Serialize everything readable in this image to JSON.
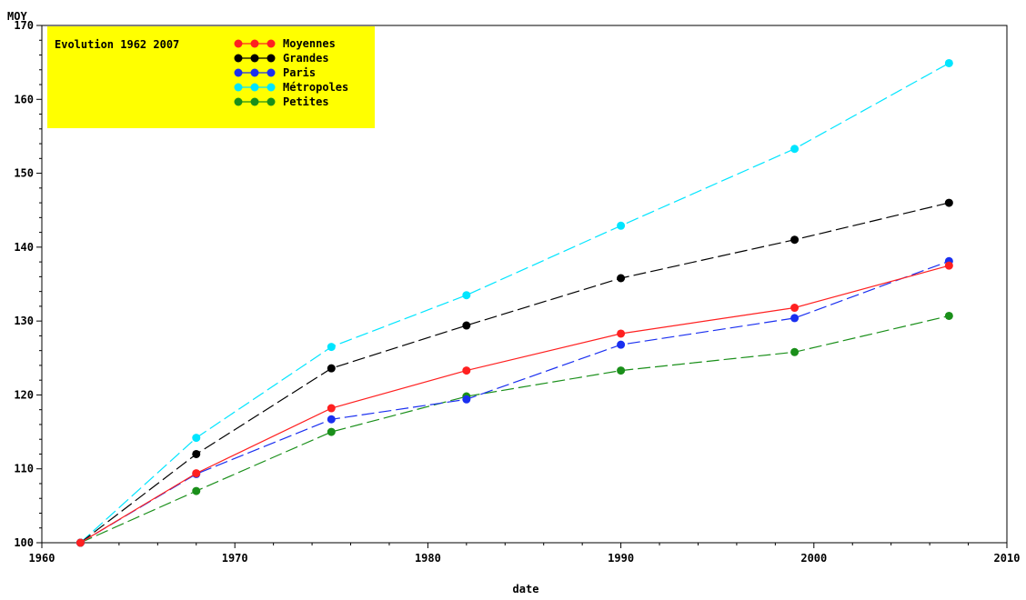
{
  "chart_data": {
    "type": "line",
    "title": "",
    "xlabel": "date",
    "ylabel": "MOY",
    "xlim": [
      1960,
      2010
    ],
    "ylim": [
      100,
      170
    ],
    "xticks": [
      1960,
      1970,
      1980,
      1990,
      2000,
      2010
    ],
    "yticks": [
      100,
      110,
      120,
      130,
      140,
      150,
      160,
      170
    ],
    "grid": false,
    "legend_placement": "top-left",
    "legend_title": "Evolution 1962 2007",
    "legend_background": "#ffff00",
    "x": [
      1962,
      1968,
      1975,
      1982,
      1990,
      1999,
      2007
    ],
    "series": [
      {
        "name": "Moyennes",
        "color": "#ff2020",
        "dash": "solid",
        "values": [
          100,
          109.4,
          118.2,
          123.3,
          128.3,
          131.8,
          137.5
        ]
      },
      {
        "name": "Grandes",
        "color": "#000000",
        "dash": "dashed",
        "values": [
          100,
          112.0,
          123.6,
          129.4,
          135.8,
          141.0,
          146.0
        ]
      },
      {
        "name": "Paris",
        "color": "#1a2ff0",
        "dash": "dashed",
        "values": [
          100,
          109.3,
          116.7,
          119.4,
          126.8,
          130.4,
          138.1
        ]
      },
      {
        "name": "Métropoles",
        "color": "#00e5ff",
        "dash": "dashed",
        "values": [
          100,
          114.2,
          126.5,
          133.5,
          142.9,
          153.3,
          164.9
        ]
      },
      {
        "name": "Petites",
        "color": "#1a8f1a",
        "dash": "dashed",
        "values": [
          100,
          107.0,
          115.0,
          119.8,
          123.3,
          125.8,
          130.7
        ]
      }
    ]
  }
}
